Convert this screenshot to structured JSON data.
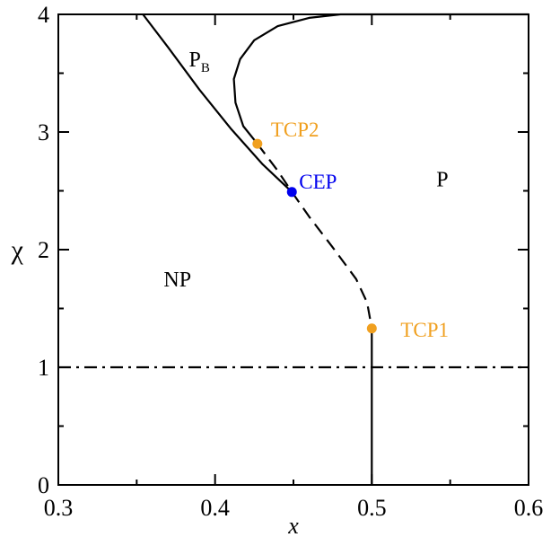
{
  "chart_data": {
    "type": "line",
    "xlabel": "x",
    "ylabel": "χ",
    "xlim": [
      0.3,
      0.6
    ],
    "ylim": [
      0,
      4
    ],
    "x_ticks": [
      "0.3",
      "0.4",
      "0.5",
      "0.6"
    ],
    "y_ticks": [
      "0",
      "1",
      "2",
      "3",
      "4"
    ],
    "grid": false,
    "legend": "none",
    "series": [
      {
        "style": "solid",
        "color": "#000000",
        "x": [
          0.354,
          0.37,
          0.39,
          0.41,
          0.43,
          0.449
        ],
        "y": [
          4.0,
          3.72,
          3.36,
          3.03,
          2.73,
          2.49
        ]
      },
      {
        "style": "solid",
        "color": "#000000",
        "x": [
          0.427,
          0.418,
          0.413,
          0.412,
          0.416,
          0.425,
          0.44,
          0.46,
          0.48,
          0.495,
          0.6
        ],
        "y": [
          2.9,
          3.05,
          3.25,
          3.45,
          3.62,
          3.78,
          3.9,
          3.97,
          4.0,
          4.0,
          4.0
        ]
      },
      {
        "style": "dashed",
        "color": "#000000",
        "x": [
          0.427,
          0.44,
          0.449,
          0.46,
          0.475,
          0.49,
          0.497,
          0.5
        ],
        "y": [
          2.9,
          2.67,
          2.49,
          2.28,
          2.02,
          1.75,
          1.55,
          1.33
        ]
      },
      {
        "style": "solid",
        "color": "#000000",
        "x": [
          0.5,
          0.5
        ],
        "y": [
          1.33,
          0
        ]
      },
      {
        "style": "dashdot",
        "color": "#000000",
        "x": [
          0.3,
          0.6
        ],
        "y": [
          1.0,
          1.0
        ]
      }
    ],
    "points": [
      {
        "label": "TCP2",
        "x": 0.427,
        "y": 2.9,
        "color": "#f0a020"
      },
      {
        "label": "CEP",
        "x": 0.449,
        "y": 2.49,
        "color": "#0000ee"
      },
      {
        "label": "TCP1",
        "x": 0.5,
        "y": 1.33,
        "color": "#f0a020"
      }
    ],
    "region_labels": [
      {
        "text": "P",
        "sub": "B",
        "x": 0.39,
        "y": 3.62
      },
      {
        "text": "P",
        "x": 0.545,
        "y": 2.6
      },
      {
        "text": "NP",
        "x": 0.376,
        "y": 1.75
      }
    ]
  }
}
